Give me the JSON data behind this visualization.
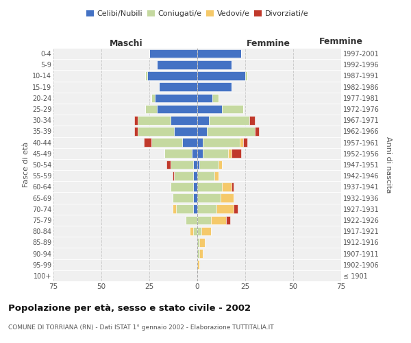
{
  "age_groups": [
    "100+",
    "95-99",
    "90-94",
    "85-89",
    "80-84",
    "75-79",
    "70-74",
    "65-69",
    "60-64",
    "55-59",
    "50-54",
    "45-49",
    "40-44",
    "35-39",
    "30-34",
    "25-29",
    "20-24",
    "15-19",
    "10-14",
    "5-9",
    "0-4"
  ],
  "birth_years": [
    "≤ 1901",
    "1902-1906",
    "1907-1911",
    "1912-1916",
    "1917-1921",
    "1922-1926",
    "1927-1931",
    "1932-1936",
    "1937-1941",
    "1942-1946",
    "1947-1951",
    "1952-1956",
    "1957-1961",
    "1962-1966",
    "1967-1971",
    "1972-1976",
    "1977-1981",
    "1982-1986",
    "1987-1991",
    "1992-1996",
    "1997-2001"
  ],
  "maschi": {
    "celibi": [
      0,
      0,
      0,
      0,
      0,
      0,
      2,
      2,
      2,
      2,
      2,
      3,
      8,
      12,
      14,
      21,
      22,
      20,
      26,
      21,
      25
    ],
    "coniugati": [
      0,
      0,
      0,
      0,
      2,
      6,
      9,
      11,
      12,
      10,
      12,
      14,
      16,
      19,
      17,
      6,
      2,
      0,
      1,
      0,
      0
    ],
    "vedovi": [
      0,
      0,
      0,
      0,
      2,
      0,
      2,
      0,
      0,
      0,
      0,
      0,
      0,
      0,
      0,
      0,
      0,
      0,
      0,
      0,
      0
    ],
    "divorziati": [
      0,
      0,
      0,
      0,
      0,
      0,
      0,
      0,
      0,
      1,
      2,
      0,
      4,
      2,
      2,
      0,
      0,
      0,
      0,
      0,
      0
    ]
  },
  "femmine": {
    "nubili": [
      0,
      0,
      0,
      0,
      0,
      0,
      0,
      0,
      0,
      0,
      1,
      3,
      3,
      5,
      6,
      13,
      8,
      18,
      25,
      18,
      23
    ],
    "coniugate": [
      0,
      0,
      1,
      1,
      2,
      7,
      10,
      12,
      13,
      9,
      10,
      13,
      19,
      25,
      21,
      11,
      3,
      0,
      1,
      0,
      0
    ],
    "vedove": [
      0,
      1,
      2,
      3,
      5,
      8,
      9,
      7,
      5,
      2,
      2,
      2,
      2,
      0,
      0,
      0,
      0,
      0,
      0,
      0,
      0
    ],
    "divorziate": [
      0,
      0,
      0,
      0,
      0,
      2,
      2,
      0,
      1,
      0,
      0,
      5,
      2,
      2,
      3,
      0,
      0,
      0,
      0,
      0,
      0
    ]
  },
  "colors": {
    "celibi_nubili": "#4472C4",
    "coniugati": "#C5D9A0",
    "vedovi": "#F5C96A",
    "divorziati": "#C0392B"
  },
  "xlim": 75,
  "title": "Popolazione per età, sesso e stato civile - 2002",
  "subtitle": "COMUNE DI TORRIANA (RN) - Dati ISTAT 1° gennaio 2002 - Elaborazione TUTTITALIA.IT",
  "ylabel_left": "Fasce di età",
  "ylabel_right": "Anni di nascita",
  "xlabel_maschi": "Maschi",
  "xlabel_femmine": "Femmine",
  "bg_color": "#ffffff",
  "plot_bg_color": "#f0f0f0",
  "grid_color": "#cccccc"
}
